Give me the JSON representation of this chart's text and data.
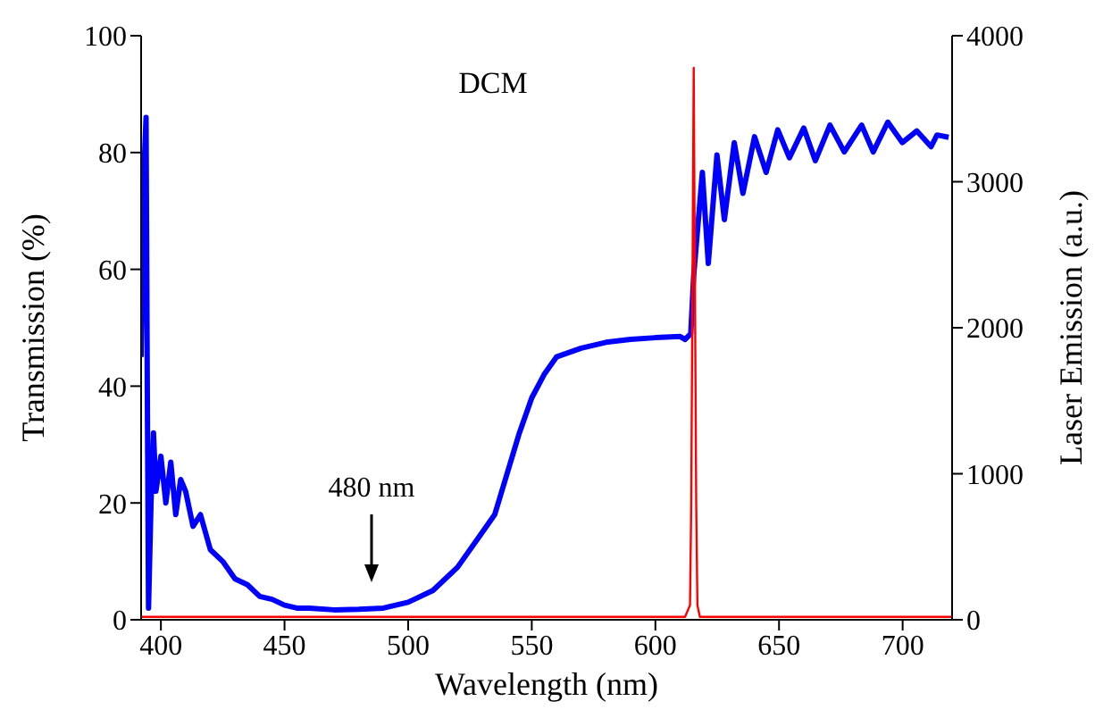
{
  "chart_data": {
    "type": "line",
    "title": "DCM",
    "xlabel": "Wavelength (nm)",
    "ylabel": "Transmission (%)",
    "y2label": "Laser Emission (a.u.)",
    "xlim": [
      392,
      720
    ],
    "xticks": [
      400,
      450,
      500,
      550,
      600,
      650,
      700
    ],
    "ylim": [
      0,
      100
    ],
    "yticks": [
      0,
      20,
      40,
      60,
      80,
      100
    ],
    "y2lim": [
      0,
      4000
    ],
    "y2ticks": [
      0,
      1000,
      2000,
      3000,
      4000
    ],
    "grid": false,
    "legend": false,
    "annotations": [
      "480 nm"
    ],
    "series": [
      {
        "color": "#0000ff",
        "x": [
          392,
          393,
          394,
          394.5,
          395,
          396,
          397,
          398,
          400,
          402,
          404,
          406,
          408,
          410,
          413,
          416,
          420,
          425,
          430,
          435,
          440,
          445,
          450,
          455,
          460,
          470,
          480,
          490,
          500,
          510,
          520,
          530,
          535,
          540,
          545,
          550,
          555,
          560,
          570,
          580,
          590,
          600,
          610,
          612,
          614.3,
          615.5,
          619,
          621.4,
          624.9,
          627.9,
          631.9,
          635.4,
          640.1,
          644.8,
          649.5,
          654.2,
          660,
          664.7,
          670.6,
          676.4,
          683.4,
          688.1,
          694,
          699.9,
          705.7,
          711.5,
          713.9,
          718.6
        ],
        "values": [
          45,
          75,
          86,
          40,
          2,
          20,
          32,
          22,
          28,
          20,
          27,
          18,
          24,
          22,
          16,
          18,
          12,
          10,
          7,
          6,
          4,
          3.5,
          2.5,
          2,
          2,
          1.7,
          1.8,
          2,
          3,
          5,
          9,
          15,
          18,
          25,
          32,
          38,
          42,
          45,
          46.5,
          47.5,
          48,
          48.3,
          48.5,
          48,
          49,
          59,
          76.6,
          61,
          79.6,
          68.5,
          81.7,
          73,
          82.7,
          76.6,
          83.9,
          79.1,
          84.2,
          78.6,
          84.7,
          80.1,
          84.7,
          80.1,
          85.2,
          81.7,
          83.7,
          81,
          83,
          82.6
        ]
      },
      {
        "color": "#ff0000",
        "axis": "y2",
        "x": [
          392,
          612,
          614,
          614.5,
          615.5,
          616.5,
          617,
          618,
          720
        ],
        "values": [
          20,
          20,
          100,
          800,
          3780,
          800,
          100,
          20,
          20
        ]
      }
    ]
  }
}
